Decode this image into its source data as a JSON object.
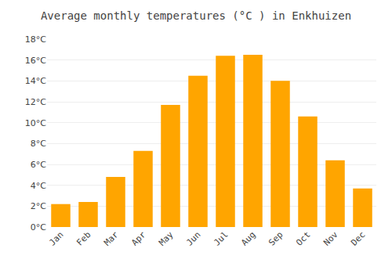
{
  "chart_data": {
    "type": "bar",
    "title": "Average monthly temperatures (°C ) in Enkhuizen",
    "categories": [
      "Jan",
      "Feb",
      "Mar",
      "Apr",
      "May",
      "Jun",
      "Jul",
      "Aug",
      "Sep",
      "Oct",
      "Nov",
      "Dec"
    ],
    "values": [
      2.2,
      2.4,
      4.8,
      7.3,
      11.7,
      14.5,
      16.4,
      16.5,
      14.0,
      10.6,
      6.4,
      3.7
    ],
    "color": "#FFA500",
    "ylim": [
      0,
      18
    ],
    "yticks": [
      {
        "value": 0,
        "label": "0°C"
      },
      {
        "value": 2,
        "label": "2°C"
      },
      {
        "value": 4,
        "label": "4°C"
      },
      {
        "value": 6,
        "label": "6°C"
      },
      {
        "value": 8,
        "label": "8°C"
      },
      {
        "value": 10,
        "label": "10°C"
      },
      {
        "value": 12,
        "label": "12°C"
      },
      {
        "value": 14,
        "label": "14°C"
      },
      {
        "value": 16,
        "label": "16°C"
      },
      {
        "value": 18,
        "label": "18°C"
      }
    ],
    "grid": true
  }
}
